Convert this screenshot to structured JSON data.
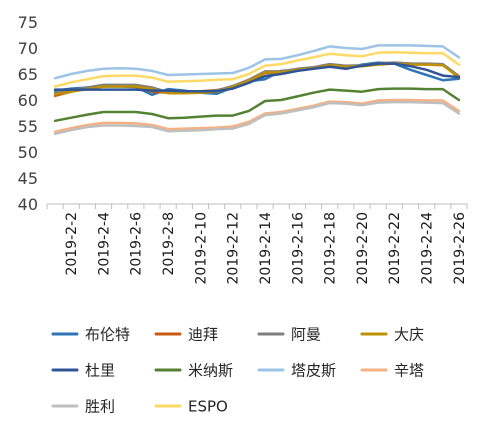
{
  "chart_data": {
    "type": "line",
    "title": "",
    "xlabel": "",
    "ylabel": "",
    "ylim": [
      40,
      75
    ],
    "yticks": [
      40,
      45,
      50,
      55,
      60,
      65,
      70,
      75
    ],
    "ytick_labels": [
      "40",
      "45",
      "50",
      "55",
      "60",
      "65",
      "70",
      "75"
    ],
    "x": [
      "2019-2-1",
      "2019-2-2",
      "2019-2-3",
      "2019-2-4",
      "2019-2-5",
      "2019-2-6",
      "2019-2-7",
      "2019-2-8",
      "2019-2-9",
      "2019-2-10",
      "2019-2-11",
      "2019-2-12",
      "2019-2-13",
      "2019-2-14",
      "2019-2-15",
      "2019-2-16",
      "2019-2-17",
      "2019-2-18",
      "2019-2-19",
      "2019-2-20",
      "2019-2-21",
      "2019-2-22",
      "2019-2-23",
      "2019-2-24",
      "2019-2-25",
      "2019-2-26"
    ],
    "xtick_labels": [
      "2019-2-2",
      "2019-2-4",
      "2019-2-6",
      "2019-2-8",
      "2019-2-10",
      "2019-2-12",
      "2019-2-14",
      "2019-2-16",
      "2019-2-18",
      "2019-2-20",
      "2019-2-22",
      "2019-2-24",
      "2019-2-26"
    ],
    "grid": false,
    "legend_position": "bottom",
    "series": [
      {
        "name": "布伦特",
        "color": "#2e75b6",
        "values": [
          61.8,
          62.2,
          62.4,
          62.6,
          62.6,
          62.5,
          61.0,
          62.1,
          61.8,
          61.4,
          61.2,
          62.4,
          63.6,
          64.0,
          65.6,
          65.8,
          66.2,
          66.6,
          66.0,
          66.8,
          67.2,
          67.0,
          65.8,
          64.8,
          63.8,
          64.1
        ]
      },
      {
        "name": "迪拜",
        "color": "#c55a11",
        "values": [
          60.8,
          61.6,
          62.2,
          62.7,
          62.7,
          62.6,
          61.6,
          61.4,
          61.6,
          61.7,
          61.9,
          62.4,
          63.6,
          65.2,
          65.2,
          65.8,
          66.2,
          66.4,
          66.4,
          66.5,
          67.0,
          67.2,
          67.0,
          66.9,
          66.8,
          64.3
        ]
      },
      {
        "name": "阿曼",
        "color": "#7f7f7f",
        "values": [
          61.4,
          61.9,
          62.4,
          62.9,
          62.9,
          62.9,
          62.4,
          61.5,
          61.5,
          61.6,
          61.8,
          62.7,
          63.9,
          65.5,
          65.5,
          66.0,
          66.3,
          66.9,
          66.6,
          66.7,
          67.0,
          67.2,
          67.0,
          67.0,
          66.9,
          64.6
        ]
      },
      {
        "name": "大庆",
        "color": "#bf9000",
        "values": [
          61.1,
          61.6,
          62.1,
          62.6,
          62.6,
          62.6,
          62.1,
          61.3,
          61.3,
          61.4,
          61.6,
          62.5,
          63.7,
          65.3,
          65.3,
          65.8,
          66.1,
          66.7,
          66.4,
          66.5,
          66.8,
          67.0,
          66.8,
          66.8,
          66.7,
          64.4
        ]
      },
      {
        "name": "杜里",
        "color": "#2f5597",
        "values": [
          62.0,
          62.0,
          62.0,
          62.0,
          62.0,
          62.0,
          61.8,
          61.8,
          61.7,
          61.7,
          61.7,
          62.2,
          63.3,
          64.6,
          65.0,
          65.6,
          66.0,
          66.4,
          66.0,
          66.6,
          67.0,
          67.0,
          66.5,
          65.8,
          64.7,
          64.4
        ]
      },
      {
        "name": "米纳斯",
        "color": "#548235",
        "values": [
          56.0,
          56.6,
          57.2,
          57.7,
          57.7,
          57.7,
          57.3,
          56.5,
          56.6,
          56.8,
          57.0,
          57.0,
          57.9,
          59.8,
          60.0,
          60.7,
          61.4,
          62.0,
          61.8,
          61.6,
          62.1,
          62.2,
          62.2,
          62.1,
          62.1,
          60.0
        ]
      },
      {
        "name": "塔皮斯",
        "color": "#9dc3e6",
        "values": [
          64.2,
          65.0,
          65.6,
          66.0,
          66.1,
          66.0,
          65.6,
          64.8,
          64.9,
          65.0,
          65.1,
          65.2,
          66.2,
          67.8,
          67.9,
          68.6,
          69.4,
          70.3,
          70.0,
          69.8,
          70.5,
          70.5,
          70.5,
          70.4,
          70.3,
          68.2
        ]
      },
      {
        "name": "辛塔",
        "color": "#f4b183",
        "values": [
          53.9,
          54.6,
          55.2,
          55.6,
          55.6,
          55.5,
          55.2,
          54.4,
          54.5,
          54.6,
          54.7,
          54.9,
          55.8,
          57.4,
          57.7,
          58.3,
          58.9,
          59.7,
          59.6,
          59.3,
          59.9,
          60.0,
          60.0,
          59.9,
          59.9,
          57.9
        ]
      },
      {
        "name": "胜利",
        "color": "#bfbfbf",
        "values": [
          53.5,
          54.2,
          54.8,
          55.1,
          55.1,
          55.0,
          54.8,
          54.0,
          54.1,
          54.2,
          54.4,
          54.5,
          55.4,
          57.1,
          57.4,
          58.0,
          58.6,
          59.4,
          59.3,
          59.0,
          59.5,
          59.6,
          59.6,
          59.5,
          59.4,
          57.4
        ]
      },
      {
        "name": "ESPO",
        "color": "#ffd966",
        "values": [
          62.6,
          63.4,
          64.0,
          64.6,
          64.7,
          64.7,
          64.3,
          63.5,
          63.6,
          63.7,
          63.9,
          64.0,
          65.0,
          66.6,
          66.9,
          67.6,
          68.2,
          68.9,
          68.6,
          68.4,
          69.1,
          69.2,
          69.1,
          69.0,
          69.0,
          66.8
        ]
      }
    ]
  }
}
